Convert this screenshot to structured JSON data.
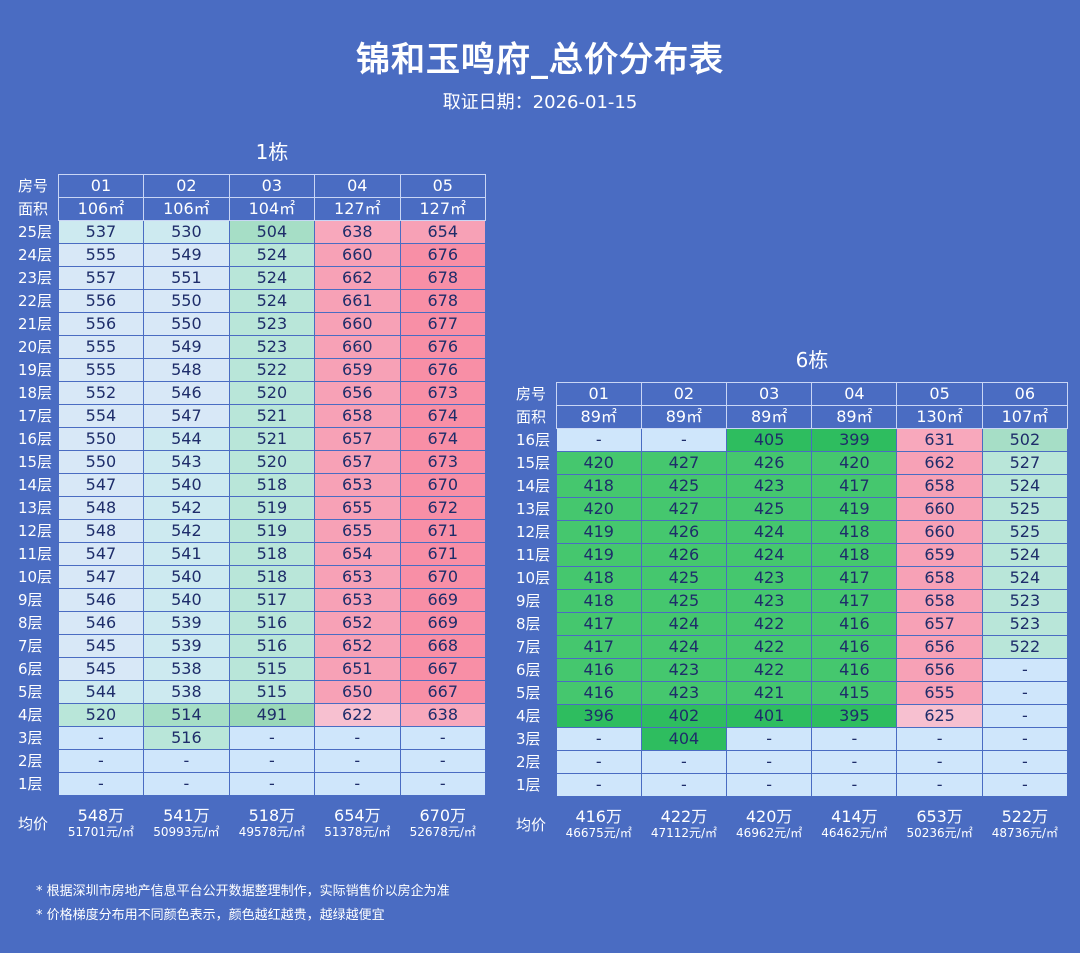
{
  "title": "锦和玉鸣府_总价分布表",
  "subtitle": "取证日期：2026-01-15",
  "labels": {
    "room": "房号",
    "area": "面积",
    "avg": "均价"
  },
  "notes": [
    "* 根据深圳市房地产信息平台公开数据整理制作，实际销售价以房企为准",
    "* 价格梯度分布用不同颜色表示，颜色越红越贵，越绿越便宜"
  ],
  "buildings": [
    {
      "name": "1栋",
      "rooms": [
        "01",
        "02",
        "03",
        "04",
        "05"
      ],
      "areas": [
        "106㎡",
        "106㎡",
        "104㎡",
        "127㎡",
        "127㎡"
      ],
      "floors": [
        {
          "floor": "25层",
          "values": [
            "537",
            "530",
            "504",
            "638",
            "654"
          ]
        },
        {
          "floor": "24层",
          "values": [
            "555",
            "549",
            "524",
            "660",
            "676"
          ]
        },
        {
          "floor": "23层",
          "values": [
            "557",
            "551",
            "524",
            "662",
            "678"
          ]
        },
        {
          "floor": "22层",
          "values": [
            "556",
            "550",
            "524",
            "661",
            "678"
          ]
        },
        {
          "floor": "21层",
          "values": [
            "556",
            "550",
            "523",
            "660",
            "677"
          ]
        },
        {
          "floor": "20层",
          "values": [
            "555",
            "549",
            "523",
            "660",
            "676"
          ]
        },
        {
          "floor": "19层",
          "values": [
            "555",
            "548",
            "522",
            "659",
            "676"
          ]
        },
        {
          "floor": "18层",
          "values": [
            "552",
            "546",
            "520",
            "656",
            "673"
          ]
        },
        {
          "floor": "17层",
          "values": [
            "554",
            "547",
            "521",
            "658",
            "674"
          ]
        },
        {
          "floor": "16层",
          "values": [
            "550",
            "544",
            "521",
            "657",
            "674"
          ]
        },
        {
          "floor": "15层",
          "values": [
            "550",
            "543",
            "520",
            "657",
            "673"
          ]
        },
        {
          "floor": "14层",
          "values": [
            "547",
            "540",
            "518",
            "653",
            "670"
          ]
        },
        {
          "floor": "13层",
          "values": [
            "548",
            "542",
            "519",
            "655",
            "672"
          ]
        },
        {
          "floor": "12层",
          "values": [
            "548",
            "542",
            "519",
            "655",
            "671"
          ]
        },
        {
          "floor": "11层",
          "values": [
            "547",
            "541",
            "518",
            "654",
            "671"
          ]
        },
        {
          "floor": "10层",
          "values": [
            "547",
            "540",
            "518",
            "653",
            "670"
          ]
        },
        {
          "floor": "9层",
          "values": [
            "546",
            "540",
            "517",
            "653",
            "669"
          ]
        },
        {
          "floor": "8层",
          "values": [
            "546",
            "539",
            "516",
            "652",
            "669"
          ]
        },
        {
          "floor": "7层",
          "values": [
            "545",
            "539",
            "516",
            "652",
            "668"
          ]
        },
        {
          "floor": "6层",
          "values": [
            "545",
            "538",
            "515",
            "651",
            "667"
          ]
        },
        {
          "floor": "5层",
          "values": [
            "544",
            "538",
            "515",
            "650",
            "667"
          ]
        },
        {
          "floor": "4层",
          "values": [
            "520",
            "514",
            "491",
            "622",
            "638"
          ]
        },
        {
          "floor": "3层",
          "values": [
            "-",
            "516",
            "-",
            "-",
            "-"
          ]
        },
        {
          "floor": "2层",
          "values": [
            "-",
            "-",
            "-",
            "-",
            "-"
          ]
        },
        {
          "floor": "1层",
          "values": [
            "-",
            "-",
            "-",
            "-",
            "-"
          ]
        }
      ],
      "averages": [
        {
          "total": "548万",
          "unit": "51701元/㎡"
        },
        {
          "total": "541万",
          "unit": "50993元/㎡"
        },
        {
          "total": "518万",
          "unit": "49578元/㎡"
        },
        {
          "total": "654万",
          "unit": "51378元/㎡"
        },
        {
          "total": "670万",
          "unit": "52678元/㎡"
        }
      ]
    },
    {
      "name": "6栋",
      "rooms": [
        "01",
        "02",
        "03",
        "04",
        "05",
        "06"
      ],
      "areas": [
        "89㎡",
        "89㎡",
        "89㎡",
        "89㎡",
        "130㎡",
        "107㎡"
      ],
      "floors": [
        {
          "floor": "16层",
          "values": [
            "-",
            "-",
            "405",
            "399",
            "631",
            "502"
          ]
        },
        {
          "floor": "15层",
          "values": [
            "420",
            "427",
            "426",
            "420",
            "662",
            "527"
          ]
        },
        {
          "floor": "14层",
          "values": [
            "418",
            "425",
            "423",
            "417",
            "658",
            "524"
          ]
        },
        {
          "floor": "13层",
          "values": [
            "420",
            "427",
            "425",
            "419",
            "660",
            "525"
          ]
        },
        {
          "floor": "12层",
          "values": [
            "419",
            "426",
            "424",
            "418",
            "660",
            "525"
          ]
        },
        {
          "floor": "11层",
          "values": [
            "419",
            "426",
            "424",
            "418",
            "659",
            "524"
          ]
        },
        {
          "floor": "10层",
          "values": [
            "418",
            "425",
            "423",
            "417",
            "658",
            "524"
          ]
        },
        {
          "floor": "9层",
          "values": [
            "418",
            "425",
            "423",
            "417",
            "658",
            "523"
          ]
        },
        {
          "floor": "8层",
          "values": [
            "417",
            "424",
            "422",
            "416",
            "657",
            "523"
          ]
        },
        {
          "floor": "7层",
          "values": [
            "417",
            "424",
            "422",
            "416",
            "656",
            "522"
          ]
        },
        {
          "floor": "6层",
          "values": [
            "416",
            "423",
            "422",
            "416",
            "656",
            "-"
          ]
        },
        {
          "floor": "5层",
          "values": [
            "416",
            "423",
            "421",
            "415",
            "655",
            "-"
          ]
        },
        {
          "floor": "4层",
          "values": [
            "396",
            "402",
            "401",
            "395",
            "625",
            "-"
          ]
        },
        {
          "floor": "3层",
          "values": [
            "-",
            "404",
            "-",
            "-",
            "-",
            "-"
          ]
        },
        {
          "floor": "2层",
          "values": [
            "-",
            "-",
            "-",
            "-",
            "-",
            "-"
          ]
        },
        {
          "floor": "1层",
          "values": [
            "-",
            "-",
            "-",
            "-",
            "-",
            "-"
          ]
        }
      ],
      "averages": [
        {
          "total": "416万",
          "unit": "46675元/㎡"
        },
        {
          "total": "422万",
          "unit": "47112元/㎡"
        },
        {
          "total": "420万",
          "unit": "46962元/㎡"
        },
        {
          "total": "414万",
          "unit": "46462元/㎡"
        },
        {
          "total": "653万",
          "unit": "50236元/㎡"
        },
        {
          "total": "522万",
          "unit": "48736元/㎡"
        }
      ]
    }
  ]
}
